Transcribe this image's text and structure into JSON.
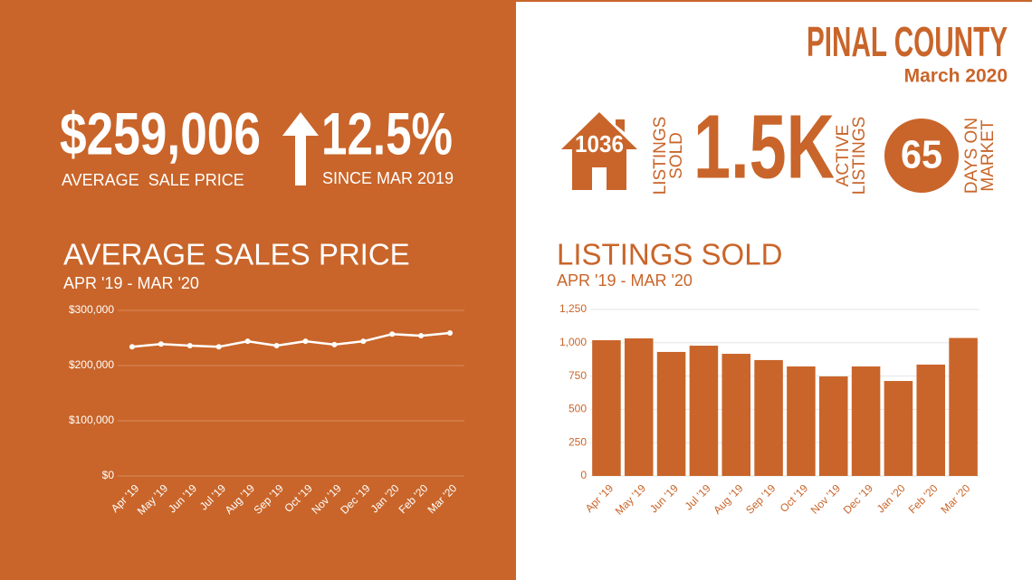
{
  "header": {
    "title": "PINAL COUNTY",
    "subtitle": "March 2020"
  },
  "stats": {
    "price": {
      "value": "$259,006",
      "label": "AVERAGE  SALE PRICE"
    },
    "change": {
      "value": "12.5%",
      "label": "SINCE MAR 2019"
    },
    "sold": {
      "value": "1036",
      "label": [
        "LISTINGS",
        "SOLD"
      ]
    },
    "active": {
      "value": "1.5K",
      "label": [
        "ACTIVE",
        "LISTINGS"
      ]
    },
    "days": {
      "value": "65",
      "label": [
        "DAYS ON",
        "MARKET"
      ]
    }
  },
  "chart_data": [
    {
      "type": "line",
      "title": "AVERAGE SALES PRICE",
      "subtitle": "APR '19 - MAR '20",
      "categories": [
        "Apr '19",
        "May '19",
        "Jun '19",
        "Jul '19",
        "Aug '19",
        "Sep '19",
        "Oct '19",
        "Nov '19",
        "Dec '19",
        "Jan '20",
        "Feb '20",
        "Mar '20"
      ],
      "values": [
        234000,
        239000,
        236000,
        234000,
        244000,
        236000,
        244000,
        238000,
        244000,
        257000,
        254000,
        259006
      ],
      "color": "#ffffff",
      "ylim": [
        0,
        300000
      ],
      "yticks": [
        {
          "value": 0,
          "label": "$0"
        },
        {
          "value": 100000,
          "label": "$100,000"
        },
        {
          "value": 200000,
          "label": "$200,000"
        },
        {
          "value": 300000,
          "label": "$300,000"
        }
      ],
      "grid": true
    },
    {
      "type": "bar",
      "title": "LISTINGS SOLD",
      "subtitle": "APR '19 - MAR '20",
      "categories": [
        "Apr '19",
        "May '19",
        "Jun '19",
        "Jul '19",
        "Aug '19",
        "Sep '19",
        "Oct '19",
        "Nov '19",
        "Dec '19",
        "Jan '20",
        "Feb '20",
        "Mar '20"
      ],
      "values": [
        1019,
        1033,
        931,
        978,
        917,
        870,
        822,
        747,
        822,
        713,
        836,
        1036
      ],
      "color": "#c9652a",
      "ylim": [
        0,
        1250
      ],
      "yticks": [
        0,
        250,
        500,
        750,
        {
          "value": 1000,
          "label": "1,000"
        },
        {
          "value": 1250,
          "label": "1,250"
        }
      ],
      "grid": true
    }
  ]
}
